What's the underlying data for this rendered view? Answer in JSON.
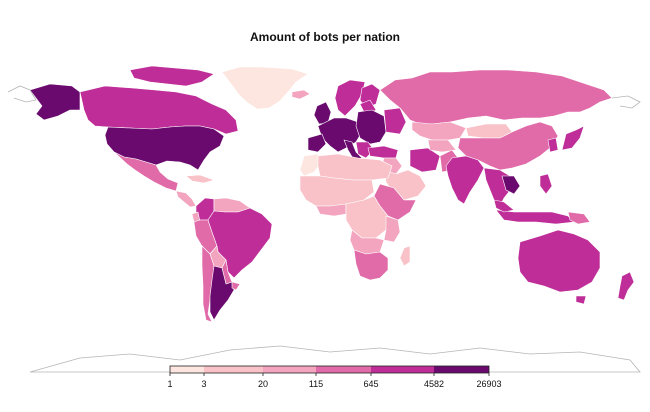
{
  "title": "Amount of bots per nation",
  "colors": {
    "class1": "#fde6e0",
    "class2": "#f9c2c8",
    "class3": "#f3a4be",
    "class4": "#e06ba8",
    "class5": "#bf2d98",
    "class6": "#6a0a6e",
    "nodata_outline": "#b5b5b5"
  },
  "legend": {
    "breaks": [
      "1",
      "3",
      "20",
      "115",
      "645",
      "4582",
      "26903"
    ],
    "classes": [
      "class1",
      "class2",
      "class3",
      "class4",
      "class5",
      "class6"
    ]
  }
}
